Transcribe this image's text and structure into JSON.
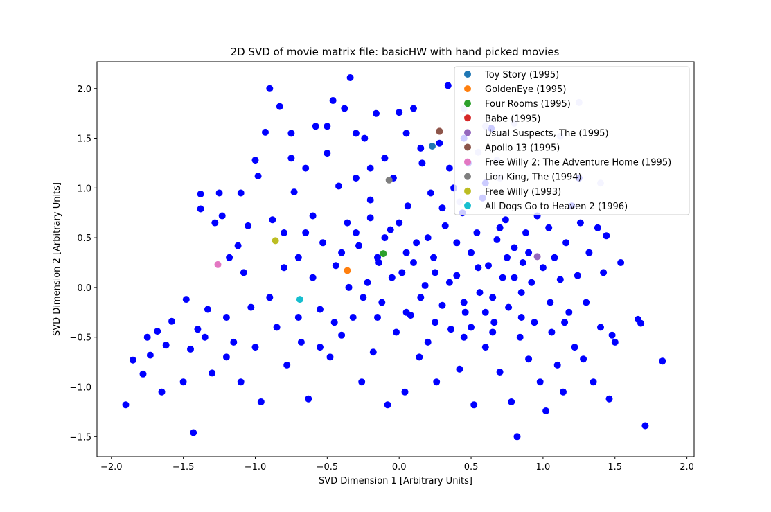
{
  "chart_data": {
    "type": "scatter",
    "title": "2D SVD of movie matrix file: basicHW with hand picked movies",
    "xlabel": "SVD Dimension 1 [Arbitrary Units]",
    "ylabel": "SVD Dimension 2 [Arbitrary Units]",
    "xlim": [
      -2.1,
      2.05
    ],
    "ylim": [
      -1.7,
      2.27
    ],
    "xticks": [
      -2.0,
      -1.5,
      -1.0,
      -0.5,
      0.0,
      0.5,
      1.0,
      1.5,
      2.0
    ],
    "yticks": [
      -1.5,
      -1.0,
      -0.5,
      0.0,
      0.5,
      1.0,
      1.5,
      2.0
    ],
    "xtick_labels": [
      "−2.0",
      "−1.5",
      "−1.0",
      "−0.5",
      "0.0",
      "0.5",
      "1.0",
      "1.5",
      "2.0"
    ],
    "ytick_labels": [
      "−1.5",
      "−1.0",
      "−0.5",
      "0.0",
      "0.5",
      "1.0",
      "1.5",
      "2.0"
    ],
    "grid": false,
    "legend_position": "top-right",
    "background": {
      "color": "#0000ff",
      "points": [
        [
          -1.9,
          -1.18
        ],
        [
          -1.85,
          -0.73
        ],
        [
          -1.78,
          -0.87
        ],
        [
          -1.75,
          -0.5
        ],
        [
          -1.73,
          -0.68
        ],
        [
          -1.68,
          -0.44
        ],
        [
          -1.65,
          -1.05
        ],
        [
          -1.62,
          -0.58
        ],
        [
          -1.58,
          -0.34
        ],
        [
          -1.5,
          -0.95
        ],
        [
          -1.48,
          -0.12
        ],
        [
          -1.45,
          -0.62
        ],
        [
          -1.43,
          -1.46
        ],
        [
          -1.4,
          -0.42
        ],
        [
          -1.38,
          0.79
        ],
        [
          -1.38,
          0.94
        ],
        [
          -1.33,
          -0.22
        ],
        [
          -1.3,
          -0.86
        ],
        [
          -1.28,
          0.65
        ],
        [
          -1.25,
          0.95
        ],
        [
          -1.23,
          0.72
        ],
        [
          -1.2,
          -0.3
        ],
        [
          -1.18,
          0.3
        ],
        [
          -1.15,
          -0.55
        ],
        [
          -1.12,
          0.42
        ],
        [
          -1.1,
          -0.95
        ],
        [
          -1.08,
          0.15
        ],
        [
          -1.05,
          0.62
        ],
        [
          -1.03,
          -0.2
        ],
        [
          -1.0,
          1.28
        ],
        [
          -0.98,
          1.12
        ],
        [
          -0.96,
          -1.15
        ],
        [
          -0.93,
          1.56
        ],
        [
          -0.9,
          2.0
        ],
        [
          -0.88,
          0.68
        ],
        [
          -0.85,
          -0.4
        ],
        [
          -0.83,
          1.82
        ],
        [
          -0.8,
          0.55
        ],
        [
          -0.78,
          -0.78
        ],
        [
          -0.75,
          1.55
        ],
        [
          -0.73,
          0.96
        ],
        [
          -0.7,
          0.3
        ],
        [
          -0.68,
          -0.55
        ],
        [
          -0.65,
          1.2
        ],
        [
          -0.63,
          -1.12
        ],
        [
          -0.6,
          0.72
        ],
        [
          -0.58,
          1.62
        ],
        [
          -0.55,
          -0.22
        ],
        [
          -0.53,
          0.45
        ],
        [
          -0.5,
          1.62
        ],
        [
          -0.48,
          -0.7
        ],
        [
          -0.46,
          1.88
        ],
        [
          -0.44,
          0.22
        ],
        [
          -0.42,
          1.02
        ],
        [
          -0.4,
          -0.48
        ],
        [
          -0.38,
          1.8
        ],
        [
          -0.36,
          0.65
        ],
        [
          -0.34,
          2.11
        ],
        [
          -0.32,
          -0.3
        ],
        [
          -0.3,
          1.1
        ],
        [
          -0.28,
          0.42
        ],
        [
          -0.26,
          -0.95
        ],
        [
          -0.24,
          1.5
        ],
        [
          -0.22,
          0.05
        ],
        [
          -0.2,
          0.88
        ],
        [
          -0.18,
          -0.65
        ],
        [
          -0.16,
          1.75
        ],
        [
          -0.14,
          0.25
        ],
        [
          -0.12,
          -0.15
        ],
        [
          -0.1,
          1.3
        ],
        [
          -0.08,
          -1.18
        ],
        [
          -0.06,
          0.58
        ],
        [
          -0.04,
          1.1
        ],
        [
          -0.02,
          -0.45
        ],
        [
          0.0,
          1.76
        ],
        [
          0.02,
          0.15
        ],
        [
          0.04,
          -1.05
        ],
        [
          0.06,
          0.82
        ],
        [
          0.08,
          -0.28
        ],
        [
          0.1,
          1.8
        ],
        [
          0.12,
          0.45
        ],
        [
          0.14,
          -0.7
        ],
        [
          0.16,
          1.25
        ],
        [
          0.18,
          0.02
        ],
        [
          0.2,
          -0.55
        ],
        [
          0.22,
          0.95
        ],
        [
          0.24,
          0.3
        ],
        [
          0.26,
          -0.95
        ],
        [
          0.28,
          1.45
        ],
        [
          0.3,
          -0.18
        ],
        [
          0.32,
          0.62
        ],
        [
          0.34,
          2.03
        ],
        [
          0.36,
          -0.42
        ],
        [
          0.38,
          1.0
        ],
        [
          0.4,
          0.12
        ],
        [
          0.42,
          -0.82
        ],
        [
          0.44,
          0.75
        ],
        [
          0.46,
          -0.25
        ],
        [
          0.48,
          1.25
        ],
        [
          0.5,
          0.35
        ],
        [
          0.52,
          -1.18
        ],
        [
          0.54,
          0.55
        ],
        [
          0.56,
          -0.05
        ],
        [
          0.58,
          0.9
        ],
        [
          0.6,
          -0.6
        ],
        [
          0.62,
          0.22
        ],
        [
          0.64,
          1.6
        ],
        [
          0.66,
          -0.35
        ],
        [
          0.68,
          0.48
        ],
        [
          0.7,
          -0.85
        ],
        [
          0.72,
          0.1
        ],
        [
          0.74,
          0.68
        ],
        [
          0.76,
          -0.2
        ],
        [
          0.78,
          -1.15
        ],
        [
          0.8,
          0.4
        ],
        [
          0.82,
          -1.5
        ],
        [
          0.84,
          -0.5
        ],
        [
          0.86,
          0.25
        ],
        [
          0.88,
          0.55
        ],
        [
          0.9,
          -0.72
        ],
        [
          0.92,
          0.05
        ],
        [
          0.94,
          -0.35
        ],
        [
          0.96,
          0.72
        ],
        [
          0.98,
          -0.95
        ],
        [
          1.0,
          0.2
        ],
        [
          1.02,
          -1.24
        ],
        [
          1.04,
          0.6
        ],
        [
          1.06,
          -0.45
        ],
        [
          1.08,
          0.3
        ],
        [
          1.1,
          -0.78
        ],
        [
          1.12,
          0.08
        ],
        [
          1.14,
          -1.05
        ],
        [
          1.16,
          0.45
        ],
        [
          1.18,
          -0.25
        ],
        [
          1.2,
          0.82
        ],
        [
          1.22,
          -0.6
        ],
        [
          1.24,
          0.12
        ],
        [
          1.26,
          0.65
        ],
        [
          1.28,
          -0.72
        ],
        [
          1.3,
          -0.15
        ],
        [
          1.32,
          0.35
        ],
        [
          1.35,
          -0.95
        ],
        [
          1.38,
          0.6
        ],
        [
          1.4,
          -0.4
        ],
        [
          1.42,
          0.15
        ],
        [
          1.44,
          0.52
        ],
        [
          1.46,
          -1.12
        ],
        [
          1.48,
          -0.48
        ],
        [
          1.5,
          -0.55
        ],
        [
          1.54,
          0.25
        ],
        [
          1.66,
          -0.32
        ],
        [
          1.68,
          -0.36
        ],
        [
          1.71,
          -1.39
        ],
        [
          1.83,
          -0.74
        ],
        [
          1.25,
          1.1
        ],
        [
          -0.35,
          0.0
        ],
        [
          -0.25,
          -0.1
        ],
        [
          -0.15,
          0.3
        ],
        [
          -0.05,
          0.1
        ],
        [
          0.05,
          0.35
        ],
        [
          0.15,
          -0.1
        ],
        [
          0.25,
          0.15
        ],
        [
          0.35,
          0.05
        ],
        [
          0.45,
          -0.15
        ],
        [
          0.55,
          0.2
        ],
        [
          0.65,
          -0.1
        ],
        [
          0.75,
          0.3
        ],
        [
          0.85,
          -0.05
        ],
        [
          -0.6,
          0.1
        ],
        [
          -0.7,
          -0.3
        ],
        [
          -0.8,
          0.2
        ],
        [
          -0.9,
          -0.1
        ],
        [
          -1.0,
          -0.6
        ],
        [
          -1.2,
          -0.7
        ],
        [
          -1.35,
          -0.5
        ],
        [
          -0.45,
          -0.35
        ],
        [
          -0.55,
          -0.6
        ],
        [
          -0.3,
          0.55
        ],
        [
          -0.2,
          0.7
        ],
        [
          -0.1,
          0.5
        ],
        [
          0.0,
          0.65
        ],
        [
          0.1,
          0.25
        ],
        [
          0.2,
          0.5
        ],
        [
          0.3,
          0.8
        ],
        [
          0.4,
          0.45
        ],
        [
          0.5,
          -0.4
        ],
        [
          0.6,
          -0.25
        ],
        [
          0.7,
          0.6
        ],
        [
          0.8,
          0.1
        ],
        [
          0.9,
          0.35
        ],
        [
          -0.65,
          0.55
        ],
        [
          -0.4,
          0.35
        ],
        [
          -0.15,
          -0.3
        ],
        [
          0.05,
          -0.25
        ],
        [
          0.25,
          -0.35
        ],
        [
          0.45,
          -0.5
        ],
        [
          0.65,
          -0.45
        ],
        [
          0.85,
          -0.3
        ],
        [
          1.05,
          -0.15
        ],
        [
          1.15,
          -0.35
        ],
        [
          -1.1,
          0.95
        ],
        [
          -0.75,
          1.3
        ],
        [
          -0.5,
          1.35
        ],
        [
          0.15,
          1.4
        ],
        [
          0.45,
          1.5
        ],
        [
          -0.2,
          1.2
        ],
        [
          -0.3,
          1.55
        ],
        [
          0.05,
          1.55
        ],
        [
          0.35,
          1.2
        ],
        [
          0.6,
          1.05
        ]
      ]
    },
    "background_faded": {
      "color": "#c8c8ff",
      "points": [
        [
          0.6,
          1.62
        ],
        [
          0.68,
          1.28
        ],
        [
          0.8,
          1.65
        ],
        [
          1.25,
          1.86
        ],
        [
          0.45,
          1.8
        ],
        [
          0.42,
          0.86
        ],
        [
          1.4,
          1.05
        ],
        [
          0.7,
          1.1
        ],
        [
          0.55,
          1.36
        ],
        [
          1.12,
          1.52
        ]
      ]
    },
    "series": [
      {
        "name": "Toy Story (1995)",
        "color": "#1f77b4",
        "x": [
          0.23
        ],
        "y": [
          1.42
        ]
      },
      {
        "name": "GoldenEye (1995)",
        "color": "#ff7f0e",
        "x": [
          -0.36
        ],
        "y": [
          0.17
        ]
      },
      {
        "name": "Four Rooms (1995)",
        "color": "#2ca02c",
        "x": [
          -0.11
        ],
        "y": [
          0.34
        ]
      },
      {
        "name": "Babe (1995)",
        "color": "#d62728",
        "x": [
          0.28
        ],
        "y": [
          1.57
        ]
      },
      {
        "name": "Usual Suspects, The (1995)",
        "color": "#9467bd",
        "x": [
          0.96
        ],
        "y": [
          0.31
        ]
      },
      {
        "name": "Apollo 13 (1995)",
        "color": "#8c564b",
        "x": [
          0.28
        ],
        "y": [
          1.57
        ]
      },
      {
        "name": "Free Willy 2: The Adventure Home (1995)",
        "color": "#e377c2",
        "x": [
          -1.26
        ],
        "y": [
          0.23
        ]
      },
      {
        "name": "Lion King, The (1994)",
        "color": "#7f7f7f",
        "x": [
          -0.07
        ],
        "y": [
          1.08
        ]
      },
      {
        "name": "Free Willy (1993)",
        "color": "#bcbd22",
        "x": [
          -0.86
        ],
        "y": [
          0.47
        ]
      },
      {
        "name": "All Dogs Go to Heaven 2 (1996)",
        "color": "#17becf",
        "x": [
          -0.69
        ],
        "y": [
          -0.12
        ]
      }
    ]
  }
}
